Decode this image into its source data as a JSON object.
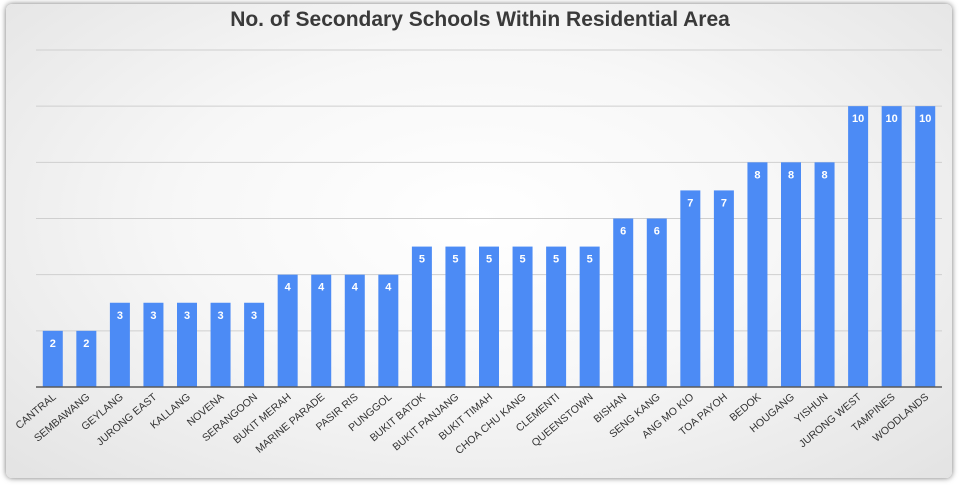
{
  "chart_data": {
    "type": "bar",
    "title": "No. of Secondary Schools Within Residential Area",
    "xlabel": "",
    "ylabel": "",
    "ylim": [
      0,
      12
    ],
    "grid": true,
    "colors": {
      "bar": "#4c8bf5"
    },
    "categories": [
      "CANTRAL",
      "SEMBAWANG",
      "GEYLANG",
      "JURONG EAST",
      "KALLANG",
      "NOVENA",
      "SERANGOON",
      "BUKIT MERAH",
      "MARINE PARADE",
      "PASIR RIS",
      "PUNGGOL",
      "BUKIT BATOK",
      "BUKIT PANJANG",
      "BUKIT TIMAH",
      "CHOA CHU KANG",
      "CLEMENTI",
      "QUEENSTOWN",
      "BISHAN",
      "SENG KANG",
      "ANG MO KIO",
      "TOA PAYOH",
      "BEDOK",
      "HOUGANG",
      "YISHUN",
      "JURONG WEST",
      "TAMPINES",
      "WOODLANDS"
    ],
    "values": [
      2,
      2,
      3,
      3,
      3,
      3,
      3,
      4,
      4,
      4,
      4,
      5,
      5,
      5,
      5,
      5,
      5,
      6,
      6,
      7,
      7,
      8,
      8,
      8,
      10,
      10,
      10
    ]
  }
}
